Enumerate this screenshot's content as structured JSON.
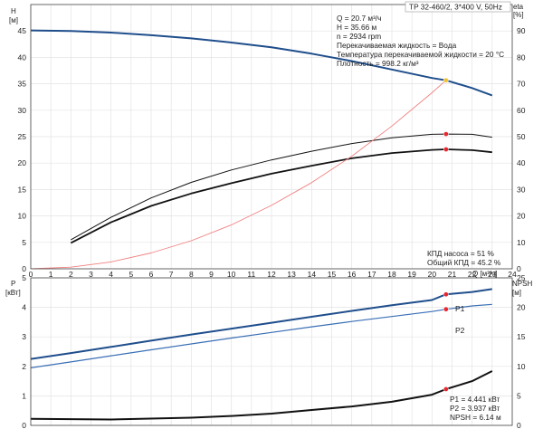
{
  "title": "TP 32-460/2, 3*400 V, 50Hz",
  "info_lines": [
    "Q = 20.7 м³/ч",
    "H = 35.66 м",
    "n = 2934 rpm",
    "Перекачиваемая жидкость = Вода",
    "Температура перекачиваемой жидкости = 20 °C",
    "Плотность = 998.2 кг/м³"
  ],
  "eff_notes": [
    "КПД насоса = 51 %",
    "Общий КПД = 45.2 %"
  ],
  "power_notes": [
    "P1 = 4.441 кВт",
    "P2 = 3.937 кВт",
    "NPSH = 6.14 м"
  ],
  "colors": {
    "head": "#1f4e8c",
    "efficiency": "#111111",
    "system_curve": "#f08080",
    "p1": "#1f4e8c",
    "p2": "#3a6fb5",
    "npsh": "#111111",
    "duty_point": "#e8262e",
    "duty_point_head": "#f2c12e"
  },
  "chart_data": [
    {
      "type": "line",
      "xlabel": "Q [м³/ч]",
      "ylabel": "H [м]",
      "y2label": "eta [%]",
      "xlim": [
        0,
        24
      ],
      "ylim": [
        0,
        50
      ],
      "y2lim": [
        0,
        100
      ],
      "x_ticks": [
        "0",
        "1",
        "2",
        "3",
        "4",
        "5",
        "6",
        "7",
        "8",
        "9",
        "10",
        "11",
        "12",
        "13",
        "14",
        "15",
        "16",
        "17",
        "18",
        "19",
        "20",
        "21",
        "22",
        "23",
        "24"
      ],
      "y_ticks": [
        "0",
        "5",
        "10",
        "15",
        "20",
        "25",
        "30",
        "35",
        "40",
        "45"
      ],
      "y2_ticks": [
        "0",
        "10",
        "20",
        "30",
        "40",
        "50",
        "60",
        "70",
        "80",
        "90"
      ],
      "grid": true,
      "series": [
        {
          "key": "head",
          "axis": "left",
          "x": [
            0,
            2,
            4,
            6,
            8,
            10,
            12,
            14,
            16,
            18,
            20,
            20.7,
            22,
            23
          ],
          "y": [
            45.1,
            45.0,
            44.7,
            44.2,
            43.6,
            42.8,
            41.9,
            40.7,
            39.3,
            37.7,
            36.1,
            35.66,
            34.2,
            32.8
          ]
        },
        {
          "key": "eff_pump",
          "axis": "right",
          "x": [
            2,
            4,
            6,
            8,
            10,
            12,
            14,
            16,
            18,
            20,
            20.7,
            22,
            23
          ],
          "y": [
            11,
            19.5,
            26.8,
            32.7,
            37.4,
            41.2,
            44.5,
            47.4,
            49.6,
            50.9,
            51.0,
            50.9,
            49.8
          ]
        },
        {
          "key": "eff_total",
          "axis": "right",
          "x": [
            2,
            4,
            6,
            8,
            10,
            12,
            14,
            16,
            18,
            20,
            20.7,
            22,
            23
          ],
          "y": [
            9.8,
            17.6,
            23.8,
            28.5,
            32.4,
            36.0,
            39.0,
            41.8,
            43.8,
            45.0,
            45.2,
            44.9,
            44.1
          ]
        },
        {
          "key": "system",
          "axis": "left",
          "x": [
            0,
            2,
            4,
            6,
            8,
            10,
            12,
            14,
            16,
            18,
            20,
            20.7
          ],
          "y": [
            0,
            0.3,
            1.3,
            3.0,
            5.3,
            8.3,
            12.0,
            16.3,
            21.3,
            27.0,
            33.3,
            35.66
          ]
        }
      ],
      "duty_points": [
        {
          "x": 20.7,
          "y": 35.66,
          "axis": "left",
          "style": "head"
        },
        {
          "x": 20.7,
          "y": 51.0,
          "axis": "right",
          "style": "eff"
        },
        {
          "x": 20.7,
          "y": 45.2,
          "axis": "right",
          "style": "eff"
        }
      ]
    },
    {
      "type": "line",
      "ylabel": "P [кВт]",
      "y2label": "NPSH [м]",
      "xlim": [
        0,
        24
      ],
      "ylim": [
        0,
        5
      ],
      "y2lim": [
        0,
        25
      ],
      "y_ticks": [
        "0",
        "1",
        "2",
        "3",
        "4",
        "5"
      ],
      "y2_ticks": [
        "0",
        "5",
        "10",
        "15",
        "20",
        "25"
      ],
      "grid": true,
      "series": [
        {
          "key": "p1",
          "name": "P1",
          "axis": "left",
          "x": [
            0,
            2,
            4,
            6,
            8,
            10,
            12,
            14,
            16,
            18,
            20,
            20.7,
            22,
            23
          ],
          "y": [
            2.25,
            2.45,
            2.66,
            2.87,
            3.08,
            3.28,
            3.48,
            3.68,
            3.88,
            4.07,
            4.25,
            4.441,
            4.52,
            4.62
          ]
        },
        {
          "key": "p2",
          "name": "P2",
          "axis": "left",
          "x": [
            0,
            2,
            4,
            6,
            8,
            10,
            12,
            14,
            16,
            18,
            20,
            20.7,
            22,
            23
          ],
          "y": [
            1.95,
            2.15,
            2.36,
            2.56,
            2.76,
            2.96,
            3.15,
            3.34,
            3.52,
            3.69,
            3.86,
            3.937,
            4.05,
            4.1
          ]
        },
        {
          "key": "npsh",
          "axis": "right",
          "x": [
            0,
            4,
            8,
            10,
            12,
            14,
            16,
            18,
            20,
            20.7,
            22,
            23
          ],
          "y": [
            1.1,
            1.0,
            1.3,
            1.6,
            2.0,
            2.6,
            3.2,
            4.0,
            5.2,
            6.14,
            7.5,
            9.2
          ]
        }
      ],
      "duty_points": [
        {
          "x": 20.7,
          "y": 4.441,
          "axis": "left",
          "style": "eff"
        },
        {
          "x": 20.7,
          "y": 3.937,
          "axis": "left",
          "style": "eff"
        },
        {
          "x": 20.7,
          "y": 6.14,
          "axis": "right",
          "style": "eff"
        }
      ]
    }
  ]
}
